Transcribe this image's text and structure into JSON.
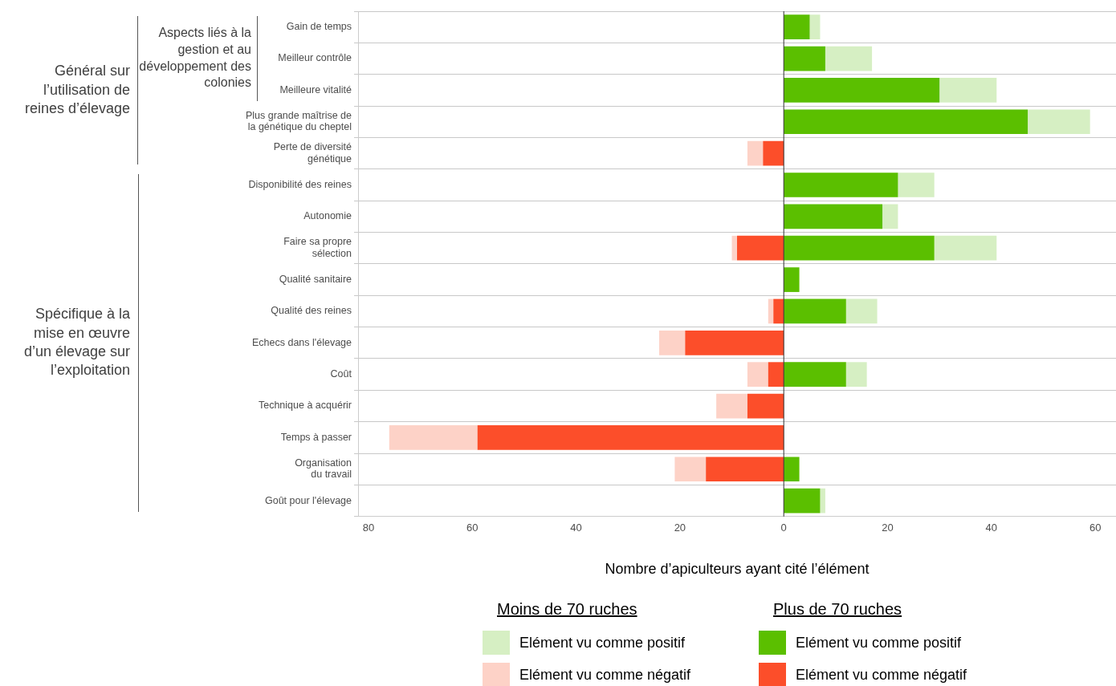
{
  "chart_data": {
    "type": "bar",
    "orientation": "horizontal",
    "stacked": true,
    "xlabel": "Nombre d’apiculteurs ayant cité l’élément",
    "categories": [
      "Gain de temps",
      "Meilleur contrôle",
      "Meilleure vitalité",
      "Plus grande maîtrise de\nla génétique du cheptel",
      "Perte de diversité\ngénétique",
      "Disponibilité des reines",
      "Autonomie",
      "Faire sa propre\nsélection",
      "Qualité sanitaire",
      "Qualité des reines",
      "Echecs dans l'élevage",
      "Coût",
      "Technique à acquérir",
      "Temps à passer",
      "Organisation\ndu travail",
      "Goût pour l'élevage"
    ],
    "series": [
      {
        "name": "Elément vu comme positif",
        "color": "#5bbf00",
        "values": [
          5,
          8,
          30,
          47,
          0,
          22,
          19,
          29,
          3,
          12,
          0,
          12,
          0,
          0,
          3,
          7
        ]
      },
      {
        "name": "Elément vu comme positif",
        "color": "#d6efc3",
        "values": [
          2,
          9,
          11,
          12,
          0,
          7,
          3,
          12,
          0,
          6,
          0,
          4,
          0,
          0,
          0,
          1
        ]
      },
      {
        "name": "Elément vu comme négatif",
        "color": "#fc4e2a",
        "values": [
          0,
          0,
          0,
          0,
          -4,
          0,
          0,
          -9,
          0,
          -2,
          -19,
          -3,
          -7,
          -59,
          -15,
          0
        ]
      },
      {
        "name": "Elément vu comme négatif",
        "color": "#fdd2c7",
        "values": [
          0,
          0,
          0,
          0,
          -3,
          0,
          0,
          -1,
          0,
          -1,
          -5,
          -4,
          -6,
          -17,
          -6,
          0
        ]
      }
    ],
    "xlim": [
      -82,
      64
    ],
    "xticks": [
      {
        "value": -80,
        "label": "80"
      },
      {
        "value": -60,
        "label": "60"
      },
      {
        "value": -40,
        "label": "40"
      },
      {
        "value": -20,
        "label": "20"
      },
      0,
      20,
      40,
      60
    ],
    "ref_lines": [
      {
        "axis": "x",
        "value": 0,
        "color": "#333333"
      }
    ],
    "grid": "y",
    "legend": "bottom",
    "annotations": [
      "Général sur l’utilisation de reines d’élevage",
      "Aspects liés à la gestion et au développement des colonies",
      "Spécifique à la mise en œuvre d’un élevage sur l’exploitation",
      "Moins de 70 ruches",
      "Plus de 70 ruches"
    ]
  }
}
